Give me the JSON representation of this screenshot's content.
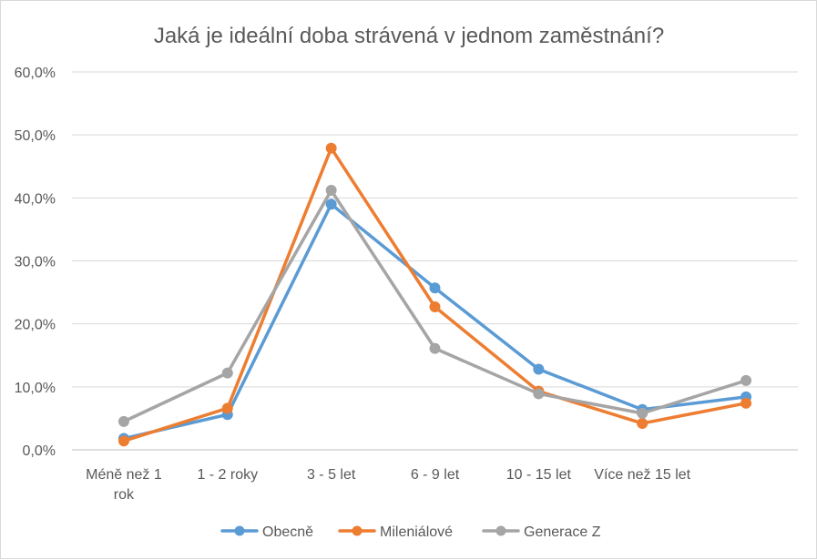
{
  "chart_data": {
    "type": "line",
    "title": "Jaká je ideální doba strávená v jednom zaměstnání?",
    "categories": [
      [
        "Méně než 1",
        "rok"
      ],
      [
        "1 - 2 roky"
      ],
      [
        "3 - 5 let"
      ],
      [
        "6 - 9 let"
      ],
      [
        "10 - 15 let"
      ],
      [
        "Více než 15 let"
      ],
      [
        ""
      ]
    ],
    "ylim": [
      0,
      60
    ],
    "yticks": [
      0,
      10,
      20,
      30,
      40,
      50,
      60
    ],
    "ytick_labels": [
      "0,0%",
      "10,0%",
      "20,0%",
      "30,0%",
      "40,0%",
      "50,0%",
      "60,0%"
    ],
    "grid": true,
    "legend_position": "bottom",
    "series": [
      {
        "name": "Obecně",
        "color": "#5b9bd5",
        "values": [
          1.8,
          5.6,
          39.0,
          25.7,
          12.8,
          6.4,
          8.4
        ]
      },
      {
        "name": "Mileniálové",
        "color": "#ed7d31",
        "values": [
          1.4,
          6.6,
          47.9,
          22.7,
          9.3,
          4.2,
          7.4
        ]
      },
      {
        "name": "Generace Z",
        "color": "#a5a5a5",
        "values": [
          4.5,
          12.2,
          41.2,
          16.1,
          8.9,
          5.8,
          11.0
        ]
      }
    ]
  }
}
